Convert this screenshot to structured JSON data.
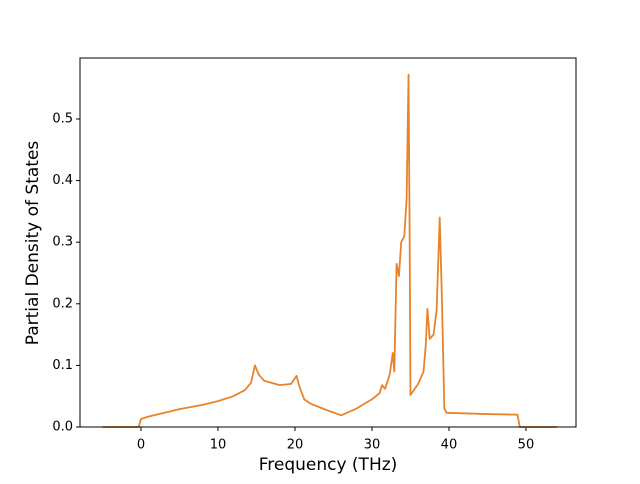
{
  "chart_data": {
    "type": "line",
    "x_label": "Frequency (THz)",
    "y_label": "Partial Density of States",
    "xlim": [
      -7.92,
      56.5
    ],
    "ylim": [
      0,
      0.599
    ],
    "xticks": [
      0,
      10,
      20,
      30,
      40,
      50
    ],
    "yticks": [
      {
        "value": 0,
        "label": "0.0"
      },
      0.1,
      0.2,
      0.3,
      0.4,
      0.5
    ],
    "grid": false,
    "x": [
      -5,
      -0.3,
      0,
      1,
      3,
      5,
      8,
      10,
      12,
      13.5,
      14.3,
      14.8,
      15.3,
      16,
      18,
      19.5,
      20.2,
      20.6,
      21.2,
      22,
      24,
      26,
      28,
      30,
      31,
      31.3,
      31.7,
      32.3,
      32.7,
      32.9,
      33.2,
      33.5,
      33.8,
      34.2,
      34.5,
      34.75,
      34.9,
      35,
      36,
      36.7,
      37,
      37.2,
      37.5,
      38,
      38.4,
      38.8,
      39.1,
      39.4,
      39.7,
      45,
      48.9,
      49.2,
      54
    ],
    "series": [
      {
        "color": "#e8832a",
        "values": [
          0,
          0,
          0.013,
          0.017,
          0.023,
          0.029,
          0.036,
          0.042,
          0.05,
          0.06,
          0.072,
          0.1,
          0.085,
          0.075,
          0.068,
          0.07,
          0.083,
          0.065,
          0.045,
          0.038,
          0.028,
          0.019,
          0.03,
          0.045,
          0.055,
          0.068,
          0.062,
          0.085,
          0.12,
          0.09,
          0.265,
          0.245,
          0.3,
          0.31,
          0.37,
          0.572,
          0.3,
          0.052,
          0.07,
          0.09,
          0.135,
          0.192,
          0.143,
          0.15,
          0.19,
          0.34,
          0.2,
          0.03,
          0.023,
          0.021,
          0.02,
          0,
          0
        ]
      }
    ]
  }
}
